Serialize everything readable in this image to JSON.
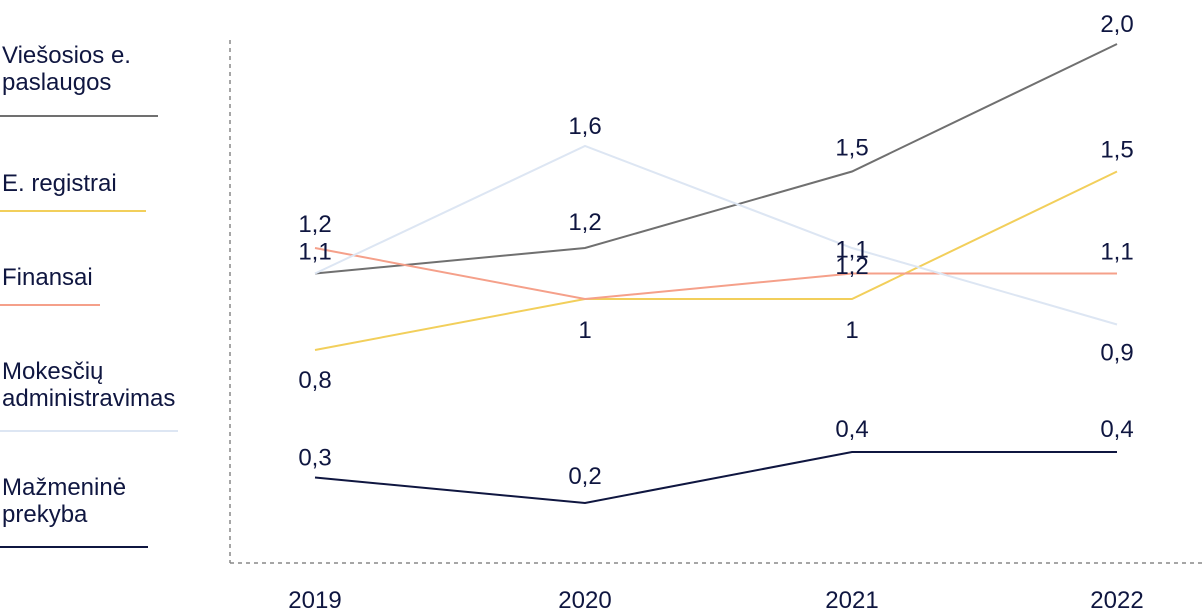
{
  "chart_data": {
    "type": "line",
    "categories": [
      "2019",
      "2020",
      "2021",
      "2022"
    ],
    "series": [
      {
        "name": "Viešosios e. paslaugos",
        "color": "#707070",
        "values": [
          1.1,
          1.2,
          1.5,
          2.0
        ],
        "labels": [
          "1,1",
          "1,2",
          "1,5",
          "2,0"
        ]
      },
      {
        "name": "E. registrai",
        "color": "#f2cf5b",
        "values": [
          0.8,
          1.0,
          1.0,
          1.5
        ],
        "labels": [
          "0,8",
          "1",
          "1",
          "1,5"
        ]
      },
      {
        "name": "Finansai",
        "color": "#f5a08a",
        "values": [
          1.2,
          1.0,
          1.1,
          1.1
        ],
        "labels": [
          "1,2",
          "",
          "1,1",
          "1,1"
        ]
      },
      {
        "name": "Mokesčių administravimas",
        "color": "#dde6f3",
        "values": [
          1.1,
          1.6,
          1.2,
          0.9
        ],
        "labels": [
          "",
          "1,6",
          "1,2",
          "0,9"
        ]
      },
      {
        "name": "Mažmeninė prekyba",
        "color": "#0f1640",
        "values": [
          0.3,
          0.2,
          0.4,
          0.4
        ],
        "labels": [
          "0,3",
          "0,2",
          "0,4",
          "0,4"
        ]
      }
    ],
    "legend_position": "left",
    "grid": false
  },
  "legend": [
    {
      "label": "Viešosios e.\npaslaugos"
    },
    {
      "label": "E. registrai"
    },
    {
      "label": "Finansai"
    },
    {
      "label": "Mokesčių\nadministravimas"
    },
    {
      "label": "Mažmeninė\nprekyba"
    }
  ]
}
